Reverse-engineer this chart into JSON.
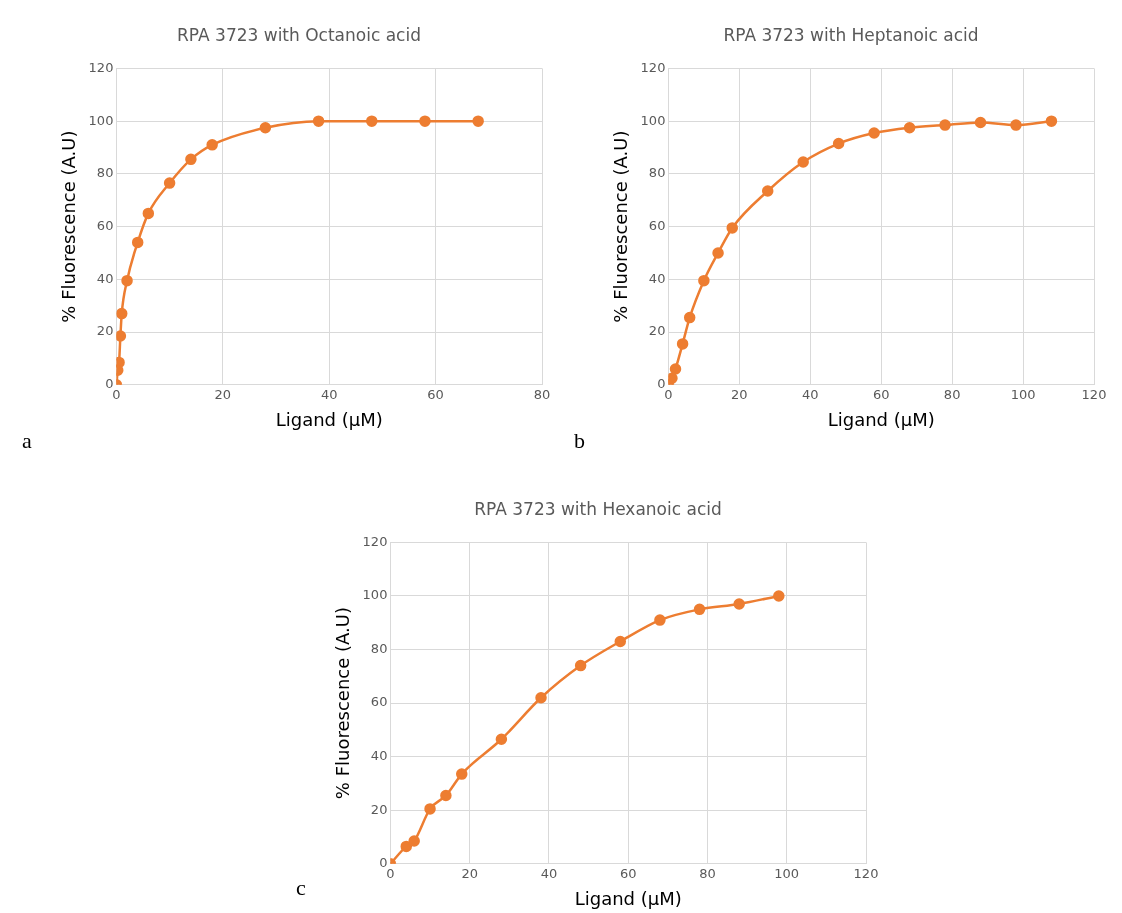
{
  "chart_data": [
    {
      "type": "line",
      "title": "RPA 3723 with Octanoic acid",
      "xlabel": "Ligand (μM)",
      "ylabel": "% Fluorescence (A.U)",
      "color": "#ed7d31",
      "marker": "circle",
      "grid": true,
      "x": [
        0,
        0.25,
        0.5,
        0.75,
        1,
        2,
        4,
        6,
        10,
        14,
        18,
        28,
        38,
        48,
        58,
        68
      ],
      "values": [
        0,
        5.5,
        8.5,
        18.5,
        27,
        39.5,
        54,
        65,
        76.5,
        85.5,
        91,
        97.5,
        100,
        100,
        100,
        100
      ],
      "xlim": [
        0,
        80
      ],
      "xticks": [
        0,
        20,
        40,
        60,
        80
      ],
      "ylim": [
        0,
        120
      ],
      "yticks": [
        0,
        20,
        40,
        60,
        80,
        100,
        120
      ],
      "annotations": [
        "a"
      ]
    },
    {
      "type": "line",
      "title": "RPA 3723 with Heptanoic acid",
      "xlabel": "Ligand (μM)",
      "ylabel": "% Fluorescence (A.U)",
      "color": "#ed7d31",
      "marker": "circle",
      "grid": true,
      "x": [
        0,
        1,
        2,
        4,
        6,
        10,
        14,
        18,
        28,
        38,
        48,
        58,
        68,
        78,
        88,
        98,
        108
      ],
      "values": [
        0,
        2.5,
        6,
        15.5,
        25.5,
        39.5,
        50,
        59.5,
        73.5,
        84.5,
        91.5,
        95.5,
        97.5,
        98.5,
        99.5,
        98.5,
        100
      ],
      "xlim": [
        0,
        120
      ],
      "xticks": [
        0,
        20,
        40,
        60,
        80,
        100,
        120
      ],
      "ylim": [
        0,
        120
      ],
      "yticks": [
        0,
        20,
        40,
        60,
        80,
        100,
        120
      ],
      "annotations": [
        "b"
      ]
    },
    {
      "type": "line",
      "title": "RPA 3723 with Hexanoic acid",
      "xlabel": "Ligand (μM)",
      "ylabel": "% Fluorescence (A.U)",
      "color": "#ed7d31",
      "marker": "circle",
      "grid": true,
      "x": [
        0,
        4,
        6,
        10,
        14,
        18,
        28,
        38,
        48,
        58,
        68,
        78,
        88,
        98
      ],
      "values": [
        0,
        6.5,
        8.5,
        20.5,
        25.5,
        33.5,
        46.5,
        62,
        74,
        83,
        91,
        95,
        97,
        100
      ],
      "xlim": [
        0,
        120
      ],
      "xticks": [
        0,
        20,
        40,
        60,
        80,
        100,
        120
      ],
      "ylim": [
        0,
        120
      ],
      "yticks": [
        0,
        20,
        40,
        60,
        80,
        100,
        120
      ],
      "annotations": [
        "c"
      ]
    }
  ]
}
